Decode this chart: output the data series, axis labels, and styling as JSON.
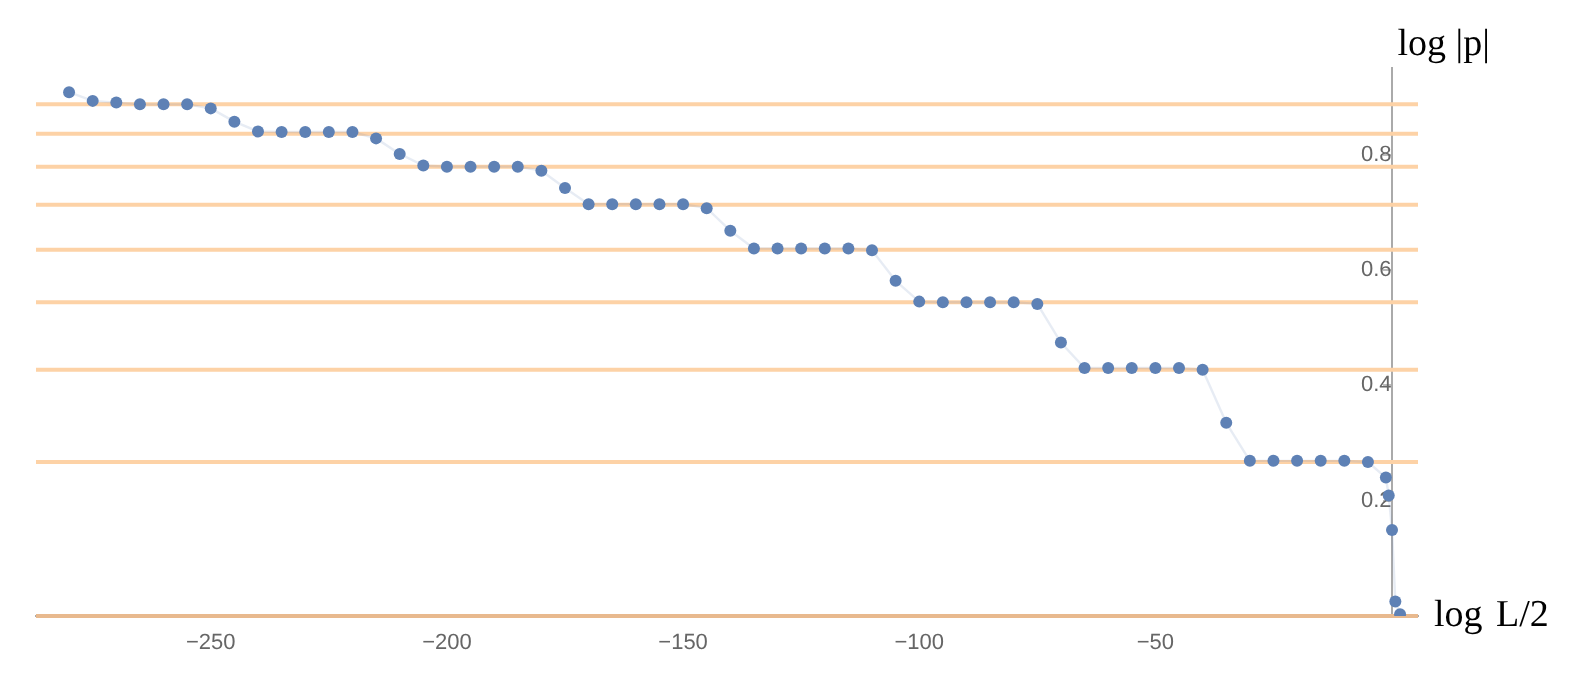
{
  "chart_data": {
    "type": "line",
    "xlabel": "log L/2",
    "ylabel": "log |p|",
    "x": [
      -280,
      -275,
      -270,
      -265,
      -260,
      -255,
      -250,
      -245,
      -240,
      -235,
      -230,
      -225,
      -220,
      -215,
      -210,
      -205,
      -200,
      -195,
      -190,
      -185,
      -180,
      -175,
      -170,
      -165,
      -160,
      -155,
      -150,
      -145,
      -140,
      -135,
      -130,
      -125,
      -120,
      -115,
      -110,
      -105,
      -100,
      -95,
      -90,
      -85,
      -80,
      -75,
      -70,
      -65,
      -60,
      -55,
      -50,
      -45,
      -40,
      -35,
      -30,
      -25,
      -20,
      -15,
      -10,
      -5,
      -1.2,
      -0.6,
      0.1,
      0.8,
      1.8
    ],
    "series": [
      {
        "color": "#5e81b5",
        "values": [
          0.908,
          0.893,
          0.89,
          0.887,
          0.887,
          0.887,
          0.88,
          0.857,
          0.84,
          0.839,
          0.839,
          0.839,
          0.839,
          0.828,
          0.801,
          0.781,
          0.779,
          0.779,
          0.779,
          0.779,
          0.772,
          0.742,
          0.714,
          0.714,
          0.714,
          0.714,
          0.714,
          0.707,
          0.668,
          0.637,
          0.637,
          0.637,
          0.637,
          0.637,
          0.634,
          0.581,
          0.545,
          0.544,
          0.544,
          0.544,
          0.544,
          0.541,
          0.474,
          0.43,
          0.43,
          0.43,
          0.43,
          0.43,
          0.427,
          0.335,
          0.269,
          0.269,
          0.269,
          0.269,
          0.269,
          0.267,
          0.24,
          0.209,
          0.149,
          0.025,
          0.003
        ]
      }
    ],
    "marker": "circle",
    "line_style": "solid",
    "xlim": [
      -287,
      5.6
    ],
    "ylim": [
      0,
      0.95
    ],
    "xticks": [
      -250,
      -200,
      -150,
      -100,
      -50
    ],
    "yticks": [
      0.2,
      0.4,
      0.6,
      0.8
    ],
    "grid": false,
    "legend": false,
    "ref_lines": [
      {
        "axis": "y",
        "value": 0.887,
        "color": "#fdd2a6"
      },
      {
        "axis": "y",
        "value": 0.836,
        "color": "#fdd2a6"
      },
      {
        "axis": "y",
        "value": 0.779,
        "color": "#fdd2a6"
      },
      {
        "axis": "y",
        "value": 0.713,
        "color": "#fdd2a6"
      },
      {
        "axis": "y",
        "value": 0.635,
        "color": "#fdd2a6"
      },
      {
        "axis": "y",
        "value": 0.544,
        "color": "#fdd2a6"
      },
      {
        "axis": "y",
        "value": 0.427,
        "color": "#fdd2a6"
      },
      {
        "axis": "y",
        "value": 0.267,
        "color": "#fdd2a6"
      },
      {
        "axis": "y",
        "value": 0,
        "color": "#e8b98e"
      }
    ]
  }
}
